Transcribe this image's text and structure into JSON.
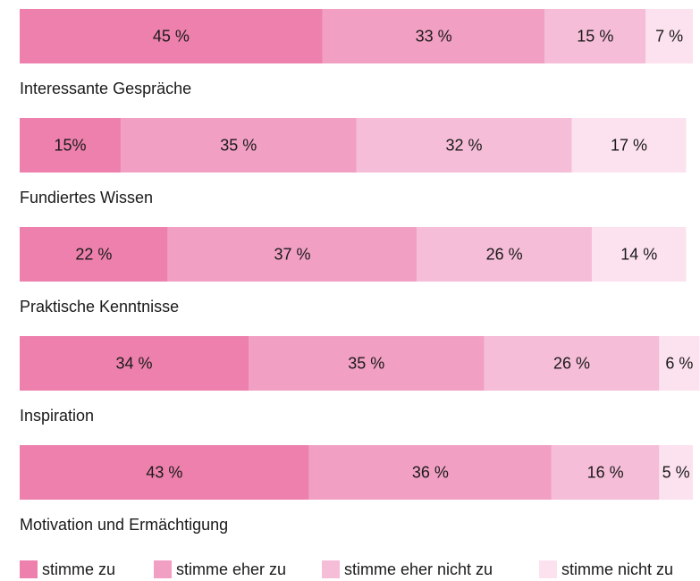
{
  "chart_data": {
    "type": "stacked-hbar",
    "categories": [
      "Interessante Gespräche",
      "Fundiertes Wissen",
      "Praktische Kenntnisse",
      "Inspiration",
      "Motivation und Ermächtigung"
    ],
    "series": [
      {
        "name": "stimme zu",
        "color": "#ed80ac",
        "values": [
          45,
          15,
          22,
          34,
          43
        ],
        "value_labels": [
          "45 %",
          "15%",
          "22 %",
          "34 %",
          "43 %"
        ]
      },
      {
        "name": "stimme eher zu",
        "color": "#f29fc4",
        "values": [
          33,
          35,
          37,
          35,
          36
        ],
        "value_labels": [
          "33 %",
          "35 %",
          "37 %",
          "35 %",
          "36 %"
        ]
      },
      {
        "name": "stimme eher nicht zu",
        "color": "#f6bdd8",
        "values": [
          15,
          32,
          26,
          26,
          16
        ],
        "value_labels": [
          "15 %",
          "32 %",
          "26 %",
          "26 %",
          "16 %"
        ]
      },
      {
        "name": "stimme nicht zu",
        "color": "#fce2ee",
        "values": [
          7,
          17,
          14,
          6,
          5
        ],
        "value_labels": [
          "7 %",
          "17 %",
          "14 %",
          "6 %",
          "5 %"
        ]
      }
    ],
    "legend": "bottom"
  }
}
